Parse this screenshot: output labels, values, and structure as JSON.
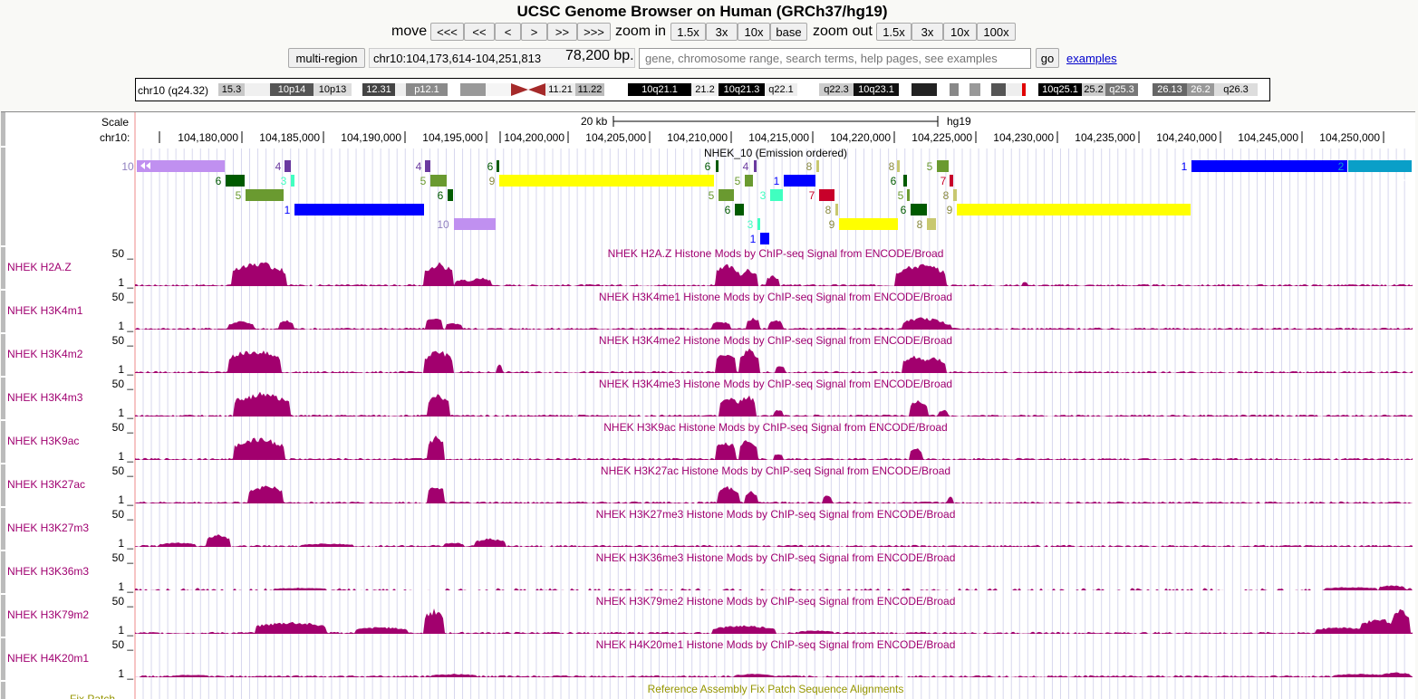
{
  "title": "UCSC Genome Browser on Human (GRCh37/hg19)",
  "nav": {
    "move_label": "move",
    "move_buttons": [
      "<<<",
      "<<",
      "<",
      ">",
      ">>",
      ">>>"
    ],
    "zoom_in_label": "zoom in",
    "zoom_in_buttons": [
      "1.5x",
      "3x",
      "10x",
      "base"
    ],
    "zoom_out_label": "zoom out",
    "zoom_out_buttons": [
      "1.5x",
      "3x",
      "10x",
      "100x"
    ]
  },
  "position": {
    "multi_region": "multi-region",
    "value": "chr10:104,173,614-104,251,813",
    "bp": "78,200 bp.",
    "search_placeholder": "gene, chromosome range, search terms, help pages, see examples",
    "go": "go",
    "examples": "examples"
  },
  "ideogram": {
    "label": "chr10 (q24.32)",
    "bands": [
      "15.3",
      "10p14",
      "10p13",
      "12.31",
      "p12.1",
      "11.21",
      "11.22",
      "10q21.1",
      "21.2",
      "10q21.3",
      "q22.1",
      "q22.3",
      "10q23.1",
      "10q25.1",
      "25.2",
      "q25.3",
      "26.13",
      "26.2",
      "q26.3"
    ]
  },
  "ruler": {
    "scale_label": "Scale",
    "chrom_label": "chr10:",
    "scale_bar": "20 kb",
    "assembly": "hg19",
    "ticks": [
      "104,180,000",
      "104,185,000",
      "104,190,000",
      "104,195,000",
      "104,200,000",
      "104,205,000",
      "104,210,000",
      "104,215,000",
      "104,220,000",
      "104,225,000",
      "104,230,000",
      "104,235,000",
      "104,240,000",
      "104,245,000",
      "104,250,000"
    ]
  },
  "chromhmm": {
    "title": "NHEK_10 (Emission ordered)",
    "state_colors": {
      "1": "#0000ff",
      "2": "#0a9fc8",
      "3": "#40ffc0",
      "4": "#6a3aa0",
      "5": "#6a9a30",
      "6": "#005a00",
      "7": "#c8002a",
      "8": "#c8c870",
      "9": "#ffff00",
      "10": "#c090f0"
    }
  },
  "signal_tracks": [
    {
      "label": "NHEK H2A.Z",
      "title": "NHEK H2A.Z Histone Mods by ChIP-seq Signal from ENCODE/Broad",
      "ymax": "50 _",
      "ymin": "1 _"
    },
    {
      "label": "NHEK H3K4m1",
      "title": "NHEK H3K4me1 Histone Mods by ChIP-seq Signal from ENCODE/Broad",
      "ymax": "50 _",
      "ymin": "1 _"
    },
    {
      "label": "NHEK H3K4m2",
      "title": "NHEK H3K4me2 Histone Mods by ChIP-seq Signal from ENCODE/Broad",
      "ymax": "50 _",
      "ymin": "1 _"
    },
    {
      "label": "NHEK H3K4m3",
      "title": "NHEK H3K4me3 Histone Mods by ChIP-seq Signal from ENCODE/Broad",
      "ymax": "50 _",
      "ymin": "1 _"
    },
    {
      "label": "NHEK H3K9ac",
      "title": "NHEK H3K9ac Histone Mods by ChIP-seq Signal from ENCODE/Broad",
      "ymax": "50 _",
      "ymin": "1 _"
    },
    {
      "label": "NHEK H3K27ac",
      "title": "NHEK H3K27ac Histone Mods by ChIP-seq Signal from ENCODE/Broad",
      "ymax": "50 _",
      "ymin": "1 _"
    },
    {
      "label": "NHEK H3K27m3",
      "title": "NHEK H3K27me3 Histone Mods by ChIP-seq Signal from ENCODE/Broad",
      "ymax": "50 _",
      "ymin": "1 _"
    },
    {
      "label": "NHEK H3K36m3",
      "title": "NHEK H3K36me3 Histone Mods by ChIP-seq Signal from ENCODE/Broad",
      "ymax": "50 _",
      "ymin": "1 _"
    },
    {
      "label": "NHEK H3K79m2",
      "title": "NHEK H3K79me2 Histone Mods by ChIP-seq Signal from ENCODE/Broad",
      "ymax": "50 _",
      "ymin": "1 _"
    },
    {
      "label": "NHEK H4K20m1",
      "title": "NHEK H4K20me1 Histone Mods by ChIP-seq Signal from ENCODE/Broad",
      "ymax": "50 _",
      "ymin": "1 _"
    }
  ],
  "bottom_track": {
    "label": "Fix Patch",
    "title": "Reference Assembly Fix Patch Sequence Alignments"
  },
  "colors": {
    "signal": "#a2006e",
    "signal_top": "#d81cd8",
    "label": "#a00070",
    "bottom": "#969600"
  }
}
